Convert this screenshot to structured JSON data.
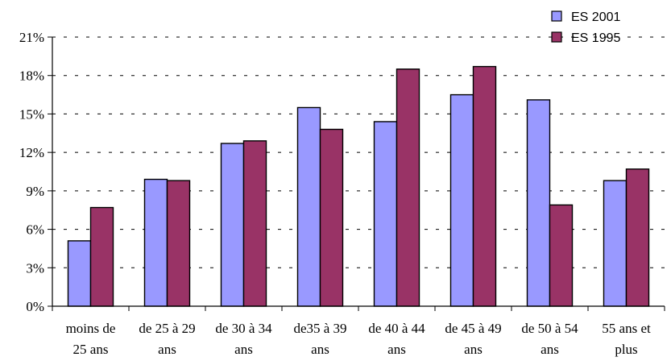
{
  "chart_data": {
    "type": "bar",
    "title": "",
    "xlabel": "",
    "ylabel": "",
    "ylim": [
      0,
      21
    ],
    "yticks": [
      "0%",
      "3%",
      "6%",
      "9%",
      "12%",
      "15%",
      "18%",
      "21%"
    ],
    "grid": "dashed horizontal",
    "legend_position": "top-right",
    "categories": [
      [
        "moins de",
        "25 ans"
      ],
      [
        "de 25 à 29",
        "ans"
      ],
      [
        "de 30 à 34",
        "ans"
      ],
      [
        "de35 à 39",
        "ans"
      ],
      [
        "de 40 à 44",
        "ans"
      ],
      [
        "de 45 à 49",
        "ans"
      ],
      [
        "de 50 à 54",
        "ans"
      ],
      [
        "55 ans et",
        "plus"
      ]
    ],
    "series": [
      {
        "name": "ES 2001",
        "color": "#9999ff",
        "values": [
          5.1,
          9.9,
          12.7,
          15.5,
          14.4,
          16.5,
          16.1,
          9.8
        ]
      },
      {
        "name": "ES 1995",
        "color": "#993366",
        "values": [
          7.7,
          9.8,
          12.9,
          13.8,
          18.5,
          18.7,
          7.9,
          10.7
        ]
      }
    ]
  }
}
